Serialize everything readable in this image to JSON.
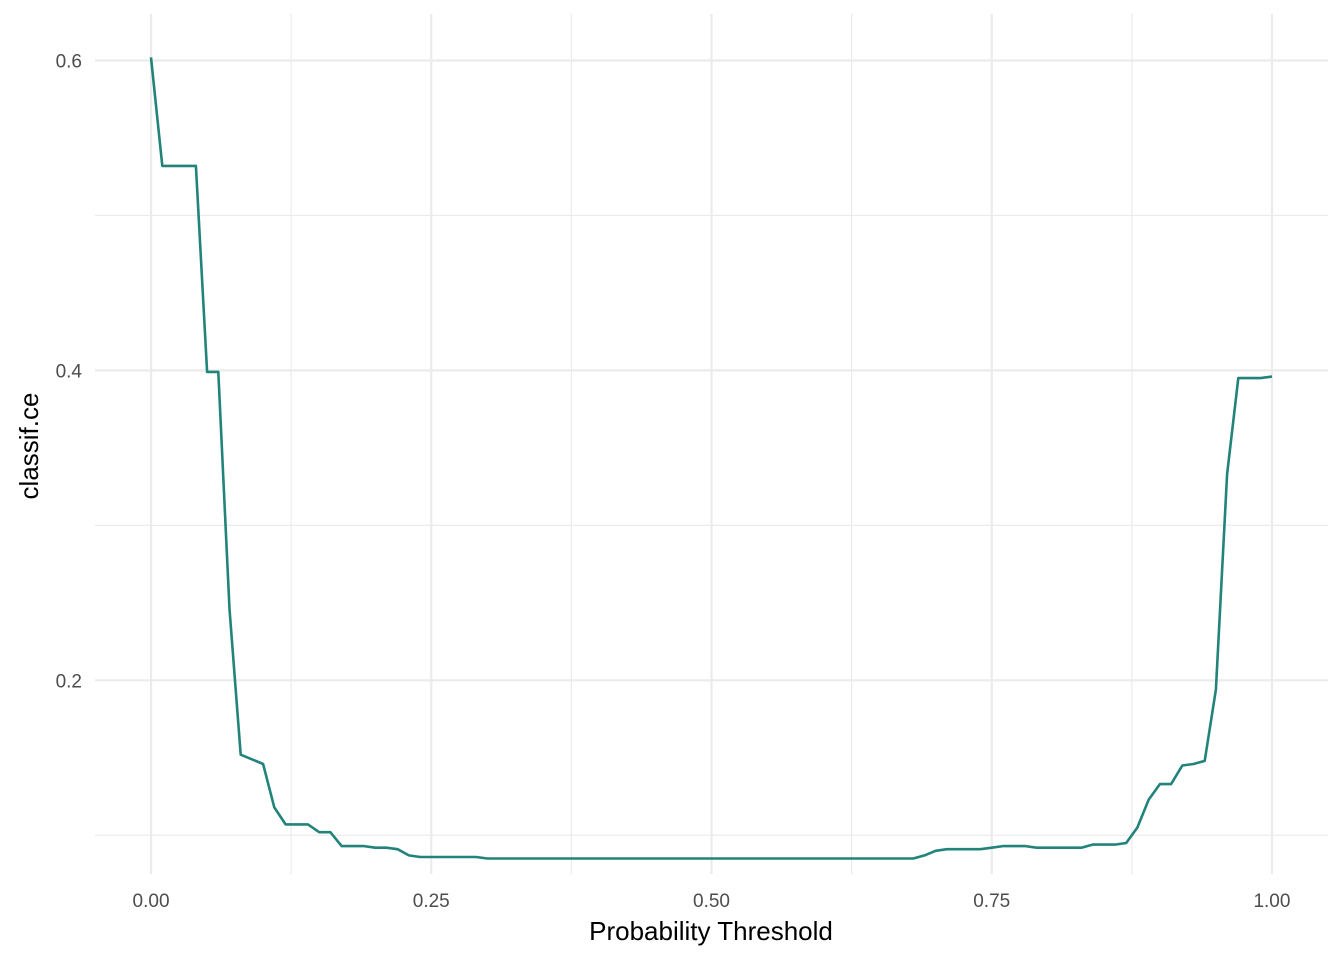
{
  "chart_data": {
    "type": "line",
    "xlabel": "Probability Threshold",
    "ylabel": "classif.ce",
    "xlim": [
      -0.05,
      1.05
    ],
    "ylim": [
      0.075,
      0.63
    ],
    "x_ticks": [
      {
        "value": 0.0,
        "label": "0.00"
      },
      {
        "value": 0.25,
        "label": "0.25"
      },
      {
        "value": 0.5,
        "label": "0.50"
      },
      {
        "value": 0.75,
        "label": "0.75"
      },
      {
        "value": 1.0,
        "label": "1.00"
      }
    ],
    "x_minor_ticks": [
      0.125,
      0.375,
      0.625,
      0.875
    ],
    "y_ticks": [
      {
        "value": 0.2,
        "label": "0.2"
      },
      {
        "value": 0.4,
        "label": "0.4"
      },
      {
        "value": 0.6,
        "label": "0.6"
      }
    ],
    "y_minor_ticks": [
      0.1,
      0.3,
      0.5
    ],
    "grid": true,
    "line_color": "#21837a",
    "series": [
      {
        "x": [
          0.0,
          0.01,
          0.02,
          0.03,
          0.04,
          0.05,
          0.06,
          0.07,
          0.08,
          0.09,
          0.1,
          0.11,
          0.12,
          0.13,
          0.14,
          0.15,
          0.16,
          0.17,
          0.18,
          0.19,
          0.2,
          0.21,
          0.22,
          0.23,
          0.24,
          0.25,
          0.26,
          0.27,
          0.28,
          0.29,
          0.3,
          0.35,
          0.4,
          0.45,
          0.5,
          0.55,
          0.6,
          0.65,
          0.68,
          0.69,
          0.7,
          0.71,
          0.72,
          0.73,
          0.74,
          0.75,
          0.76,
          0.77,
          0.78,
          0.79,
          0.8,
          0.81,
          0.82,
          0.83,
          0.84,
          0.85,
          0.86,
          0.87,
          0.88,
          0.89,
          0.9,
          0.91,
          0.92,
          0.93,
          0.94,
          0.95,
          0.96,
          0.97,
          0.98,
          0.99,
          1.0
        ],
        "y": [
          0.602,
          0.532,
          0.532,
          0.532,
          0.532,
          0.399,
          0.399,
          0.246,
          0.152,
          0.149,
          0.146,
          0.118,
          0.107,
          0.107,
          0.107,
          0.102,
          0.102,
          0.093,
          0.093,
          0.093,
          0.092,
          0.092,
          0.091,
          0.087,
          0.086,
          0.086,
          0.086,
          0.086,
          0.086,
          0.086,
          0.085,
          0.085,
          0.085,
          0.085,
          0.085,
          0.085,
          0.085,
          0.085,
          0.085,
          0.087,
          0.09,
          0.091,
          0.091,
          0.091,
          0.091,
          0.092,
          0.093,
          0.093,
          0.093,
          0.092,
          0.092,
          0.092,
          0.092,
          0.092,
          0.094,
          0.094,
          0.094,
          0.095,
          0.105,
          0.123,
          0.133,
          0.133,
          0.145,
          0.146,
          0.148,
          0.194,
          0.333,
          0.395,
          0.395,
          0.395,
          0.396
        ]
      }
    ]
  }
}
